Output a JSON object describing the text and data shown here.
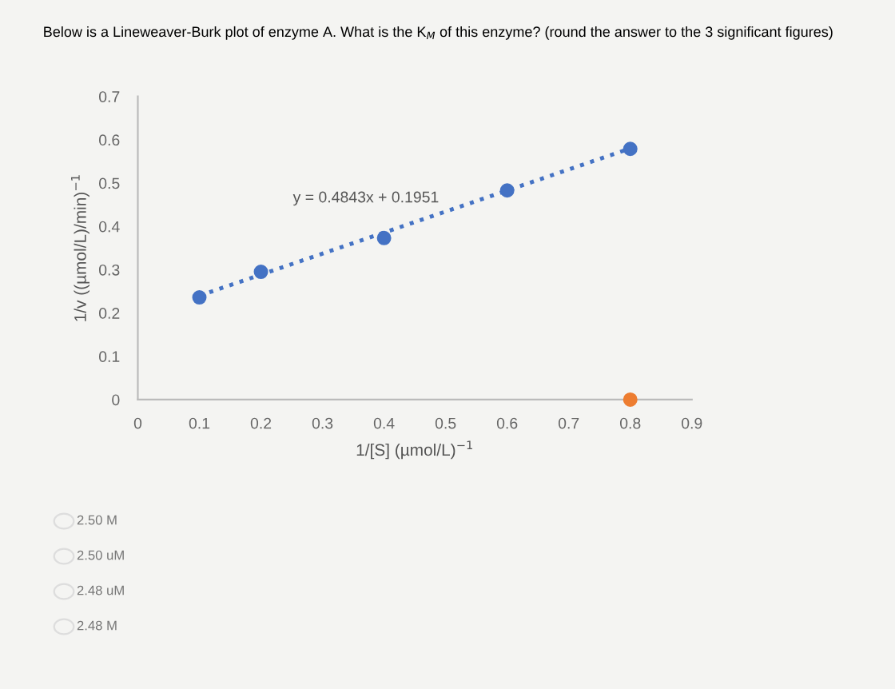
{
  "chart_data": {
    "type": "scatter",
    "title": "Below is a Lineweaver-Burk plot of enzyme A. What is the K$_{M}$ of this enzyme? (round the answer to the 3 significant figures)",
    "xlabel": "1/[S] (µmol/L)$^{−1}$",
    "ylabel": "1/v ((µmol/L)/min)$^{−1}$",
    "series": [
      {
        "type": "line",
        "color": "#4472c4",
        "x": [
          0.1,
          0.8
        ],
        "values": [
          0.24,
          0.58
        ],
        "line_style": "dotted",
        "marker": "none"
      },
      {
        "color": "#4472c4",
        "x": [
          0.1,
          0.2,
          0.4,
          0.6,
          0.8
        ],
        "values": [
          0.236,
          0.295,
          0.373,
          0.483,
          0.579
        ],
        "marker": "circle"
      },
      {
        "color": "#ed7d31",
        "x": [
          0.8
        ],
        "values": [
          0
        ],
        "marker": "circle"
      }
    ],
    "xlim": [
      0,
      0.9
    ],
    "ylim": [
      0,
      0.7
    ],
    "xticks": [
      0,
      0.1,
      0.2,
      0.3,
      0.4,
      0.5,
      0.6,
      0.7,
      0.8,
      0.9
    ],
    "yticks": [
      0,
      0.1,
      0.2,
      0.3,
      0.4,
      0.5,
      0.6,
      0.7
    ],
    "grid": false,
    "legend": false,
    "annotations": [
      "y = 0.4843x + 0.1951",
      "2.50 M",
      "2.50 uM",
      "2.48 uM",
      "2.48 M"
    ]
  }
}
